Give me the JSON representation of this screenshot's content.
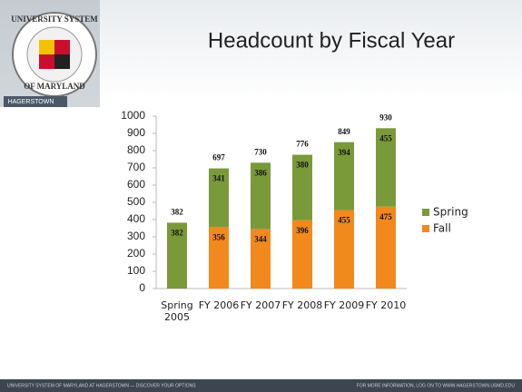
{
  "header": {
    "logo_top": "UNIVERSITY SYSTEM",
    "logo_bottom": "OF MARYLAND",
    "logo_campus": "HAGERSTOWN"
  },
  "chart_data": {
    "type": "stacked_bar",
    "title": "Headcount by Fiscal Year",
    "categories": [
      "Spring 2005",
      "FY 2006",
      "FY 2007",
      "FY 2008",
      "FY 2009",
      "FY 2010"
    ],
    "series": [
      {
        "name": "Fall",
        "color": "#f2891d",
        "values": [
          null,
          356,
          344,
          396,
          455,
          475
        ]
      },
      {
        "name": "Spring",
        "color": "#7a9a3a",
        "values": [
          382,
          341,
          386,
          380,
          394,
          455
        ]
      }
    ],
    "totals": [
      382,
      697,
      730,
      776,
      849,
      930
    ],
    "ylim": [
      0,
      1000
    ],
    "yticks": [
      0,
      100,
      200,
      300,
      400,
      500,
      600,
      700,
      800,
      900,
      1000
    ],
    "legend": "right",
    "grid": false
  },
  "footer": {
    "left": "UNIVERSITY SYSTEM OF MARYLAND AT HAGERSTOWN — DISCOVER YOUR OPTIONS",
    "right": "FOR MORE INFORMATION, LOG ON TO WWW.HAGERSTOWN.USMD.EDU"
  }
}
